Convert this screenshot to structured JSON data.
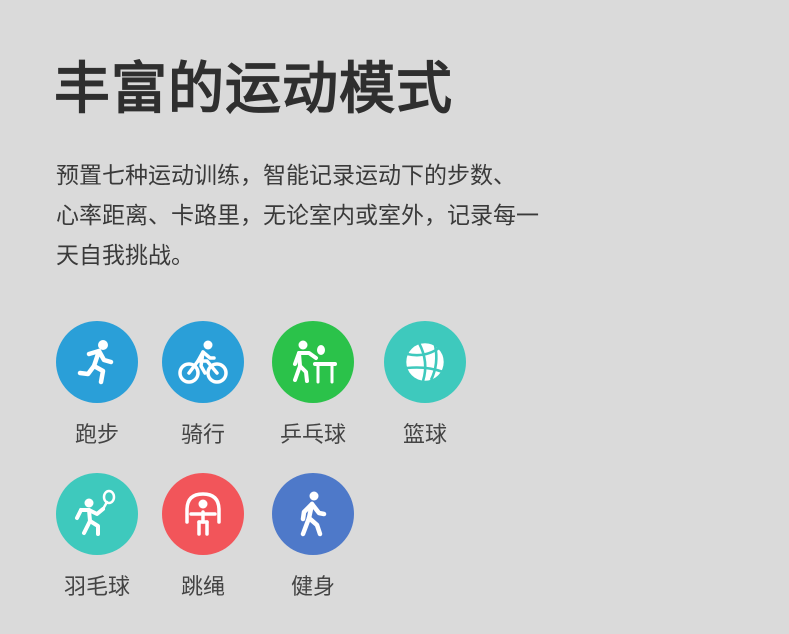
{
  "title": "丰富的运动模式",
  "description_lines": [
    "预置七种运动训练，智能记录运动下的步数、",
    "心率距离、卡路里，无论室内或室外，记录每一",
    "天自我挑战。"
  ],
  "sports": [
    {
      "label": "跑步",
      "icon": "running-icon",
      "color": "#2a9fd8"
    },
    {
      "label": "骑行",
      "icon": "cycling-icon",
      "color": "#2a9fd8"
    },
    {
      "label": "乒乓球",
      "icon": "table-tennis-icon",
      "color": "#2bc24a"
    },
    {
      "label": "篮球",
      "icon": "basketball-icon",
      "color": "#3ec9bd"
    },
    {
      "label": "羽毛球",
      "icon": "badminton-icon",
      "color": "#3ec9bd"
    },
    {
      "label": "跳绳",
      "icon": "jump-rope-icon",
      "color": "#f2555a"
    },
    {
      "label": "健身",
      "icon": "fitness-walking-icon",
      "color": "#4e79c9"
    }
  ]
}
